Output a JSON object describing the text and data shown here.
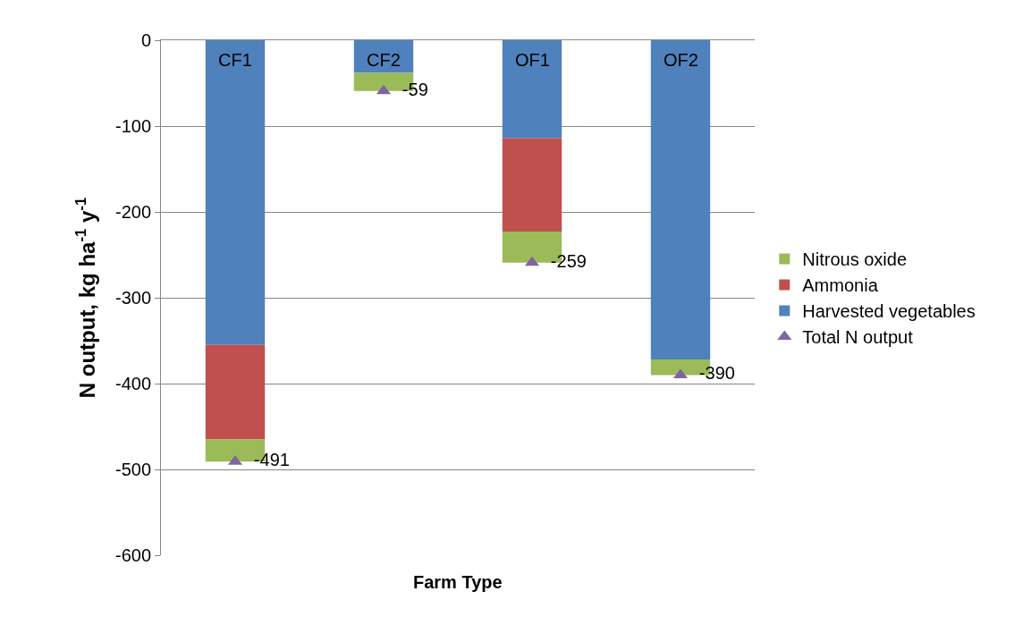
{
  "chart_data": {
    "type": "bar",
    "stacked": true,
    "xlabel": "Farm Type",
    "ylabel": "N output, kg ha$^{-1}$ y$^{-1}$",
    "categories": [
      "CF1",
      "CF2",
      "OF1",
      "OF2"
    ],
    "series": [
      {
        "name": "Harvested vegetables",
        "color": "#4f81bd",
        "values": [
          -355,
          -38,
          -114,
          -372
        ]
      },
      {
        "name": "Ammonia",
        "color": "#c0504d",
        "values": [
          -110,
          0,
          -109,
          0
        ]
      },
      {
        "name": "Nitrous oxide",
        "color": "#9bbb59",
        "values": [
          -26,
          -21,
          -36,
          -18
        ]
      },
      {
        "name": "Total N output",
        "type": "scatter",
        "marker": "triangle",
        "color": "#8064a2",
        "values": [
          -491,
          -59,
          -259,
          -390
        ],
        "value_labels": [
          "-491",
          "-59",
          "-259",
          "-390"
        ]
      }
    ],
    "ylim": [
      -600,
      0
    ],
    "yticks": [
      -600,
      -500,
      -400,
      -300,
      -200,
      -100,
      0
    ],
    "grid": "y",
    "legend": "right"
  }
}
